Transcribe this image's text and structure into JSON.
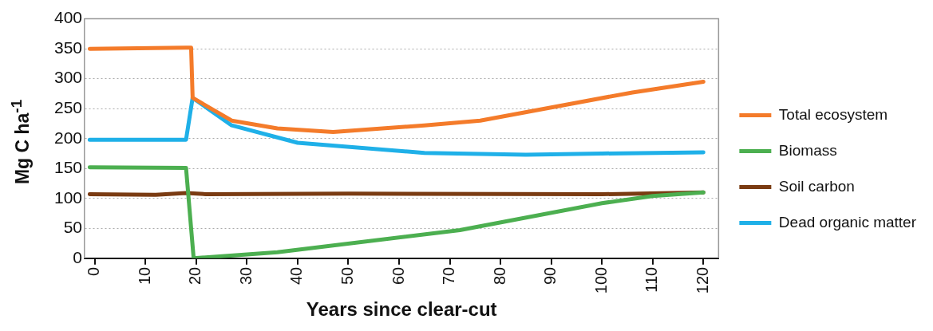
{
  "chart_data": {
    "type": "line",
    "xlabel": "Years since clear-cut",
    "ylabel": "Mg C ha$^{-1}$",
    "xlim": [
      -2,
      123
    ],
    "xticks": [
      0,
      10,
      20,
      30,
      40,
      50,
      60,
      70,
      80,
      90,
      100,
      110,
      120
    ],
    "ylim": [
      0,
      400
    ],
    "yticks": [
      0,
      50,
      100,
      150,
      200,
      250,
      300,
      350,
      400
    ],
    "grid": "y",
    "legend": "right",
    "marker": "none",
    "line_style": "solid",
    "series": [
      {
        "name": "Total ecosystem",
        "color": "#f47b2a",
        "x": [
          -1,
          18,
          19,
          19.3,
          27,
          36,
          47,
          65,
          76,
          90,
          106,
          120
        ],
        "values": [
          350,
          352,
          352,
          268,
          230,
          217,
          211,
          222,
          230,
          252,
          277,
          295
        ]
      },
      {
        "name": "Biomass",
        "color": "#4caf50",
        "x": [
          -1,
          18,
          19.5,
          36,
          72,
          100,
          110,
          120
        ],
        "values": [
          152,
          151,
          0,
          10,
          47,
          92,
          104,
          110
        ]
      },
      {
        "name": "Soil carbon",
        "color": "#7a3b12",
        "x": [
          -1,
          12,
          18,
          22,
          50,
          100,
          120
        ],
        "values": [
          107,
          106,
          109,
          107,
          108,
          107,
          110
        ]
      },
      {
        "name": "Dead organic matter",
        "color": "#1fb0e8",
        "x": [
          -1,
          18,
          19.3,
          27,
          40,
          65,
          85,
          100,
          120
        ],
        "values": [
          198,
          198,
          268,
          222,
          193,
          176,
          173,
          175,
          177
        ]
      }
    ]
  }
}
